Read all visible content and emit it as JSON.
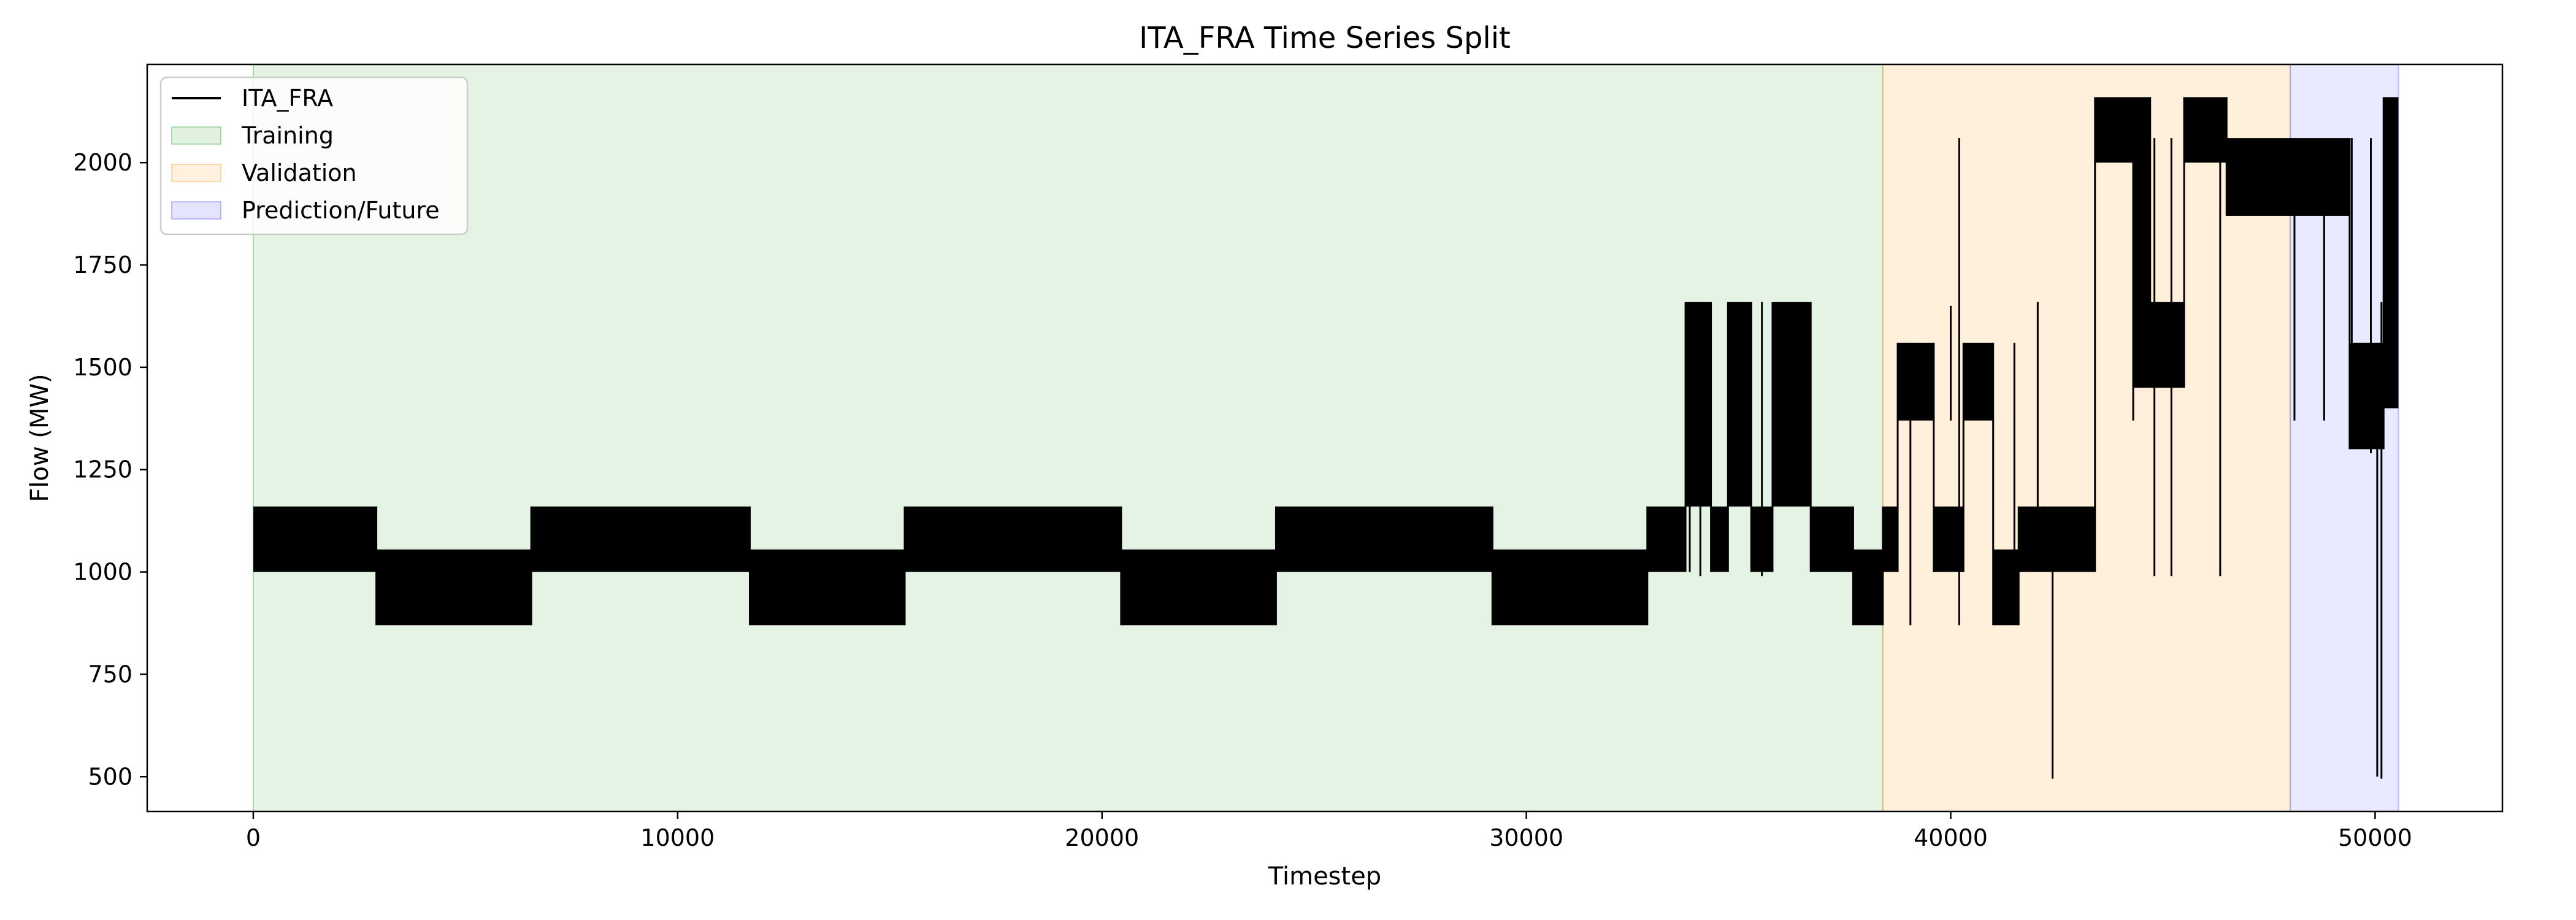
{
  "chart_data": {
    "type": "line",
    "title": "ITA_FRA Time Series Split",
    "xlabel": "Timestep",
    "ylabel": "Flow (MW)",
    "xlim": [
      -2500,
      53000
    ],
    "ylim": [
      415,
      2240
    ],
    "x_ticks": [
      0,
      10000,
      20000,
      30000,
      40000,
      50000
    ],
    "x_tick_labels": [
      "0",
      "10000",
      "20000",
      "30000",
      "40000",
      "50000"
    ],
    "y_ticks": [
      500,
      750,
      1000,
      1250,
      1500,
      1750,
      2000
    ],
    "y_tick_labels": [
      "500",
      "750",
      "1000",
      "1250",
      "1500",
      "1750",
      "2000"
    ],
    "grid": false,
    "legend_position": "top-left",
    "legend": [
      {
        "label": "ITA_FRA",
        "kind": "line",
        "color": "#000000"
      },
      {
        "label": "Training",
        "kind": "patch",
        "color": "#2ca02c"
      },
      {
        "label": "Validation",
        "kind": "patch",
        "color": "#ff9f1c"
      },
      {
        "label": "Prediction/Future",
        "kind": "patch",
        "color": "#4c4cff"
      }
    ],
    "regions": [
      {
        "name": "Training",
        "x_start": 0,
        "x_end": 38400,
        "color": "#2ca02c",
        "alpha": 0.12
      },
      {
        "name": "Validation",
        "x_start": 38400,
        "x_end": 48000,
        "color": "#ff9f1c",
        "alpha": 0.16
      },
      {
        "name": "Prediction/Future",
        "x_start": 48000,
        "x_end": 50550,
        "color": "#4c4cff",
        "alpha": 0.12
      }
    ],
    "series": [
      {
        "name": "ITA_FRA",
        "color": "#000000",
        "band_segments": [
          {
            "x_start": 0,
            "x_end": 2900,
            "low": 1000,
            "high": 1160
          },
          {
            "x_start": 2900,
            "x_end": 6550,
            "low": 870,
            "high": 1055
          },
          {
            "x_start": 6550,
            "x_end": 11700,
            "low": 1000,
            "high": 1160
          },
          {
            "x_start": 11700,
            "x_end": 15350,
            "low": 870,
            "high": 1055
          },
          {
            "x_start": 15350,
            "x_end": 20450,
            "low": 1000,
            "high": 1160
          },
          {
            "x_start": 20450,
            "x_end": 24100,
            "low": 870,
            "high": 1055
          },
          {
            "x_start": 24100,
            "x_end": 29200,
            "low": 1000,
            "high": 1160
          },
          {
            "x_start": 29200,
            "x_end": 32850,
            "low": 870,
            "high": 1055
          },
          {
            "x_start": 32850,
            "x_end": 33750,
            "low": 1000,
            "high": 1160
          },
          {
            "x_start": 33750,
            "x_end": 34350,
            "low": 1160,
            "high": 1660
          },
          {
            "x_start": 34350,
            "x_end": 34750,
            "low": 1000,
            "high": 1160
          },
          {
            "x_start": 34750,
            "x_end": 35300,
            "low": 1160,
            "high": 1660
          },
          {
            "x_start": 35300,
            "x_end": 35800,
            "low": 1000,
            "high": 1160
          },
          {
            "x_start": 35800,
            "x_end": 36700,
            "low": 1160,
            "high": 1660
          },
          {
            "x_start": 36700,
            "x_end": 37700,
            "low": 1000,
            "high": 1160
          },
          {
            "x_start": 37700,
            "x_end": 38400,
            "low": 870,
            "high": 1055
          },
          {
            "x_start": 38400,
            "x_end": 38750,
            "low": 1000,
            "high": 1160
          },
          {
            "x_start": 38750,
            "x_end": 39600,
            "low": 1370,
            "high": 1560
          },
          {
            "x_start": 39600,
            "x_end": 40300,
            "low": 1000,
            "high": 1160
          },
          {
            "x_start": 40300,
            "x_end": 41000,
            "low": 1370,
            "high": 1560
          },
          {
            "x_start": 41000,
            "x_end": 41600,
            "low": 870,
            "high": 1055
          },
          {
            "x_start": 41600,
            "x_end": 42200,
            "low": 1000,
            "high": 1160
          },
          {
            "x_start": 42200,
            "x_end": 43400,
            "low": 1000,
            "high": 1160
          },
          {
            "x_start": 43400,
            "x_end": 44300,
            "low": 2000,
            "high": 2160
          },
          {
            "x_start": 44300,
            "x_end": 44700,
            "low": 1450,
            "high": 2160
          },
          {
            "x_start": 44700,
            "x_end": 45500,
            "low": 1450,
            "high": 1660
          },
          {
            "x_start": 45500,
            "x_end": 46500,
            "low": 2000,
            "high": 2160
          },
          {
            "x_start": 46500,
            "x_end": 48000,
            "low": 1870,
            "high": 2060
          },
          {
            "x_start": 48000,
            "x_end": 49400,
            "low": 1870,
            "high": 2060
          },
          {
            "x_start": 49400,
            "x_end": 50200,
            "low": 1300,
            "high": 1560
          },
          {
            "x_start": 50200,
            "x_end": 50550,
            "low": 1400,
            "high": 2160
          }
        ],
        "spikes": [
          {
            "x": 33850,
            "low": 1000,
            "high": 1660
          },
          {
            "x": 34100,
            "low": 990,
            "high": 1660
          },
          {
            "x": 35550,
            "low": 990,
            "high": 1660
          },
          {
            "x": 39050,
            "low": 870,
            "high": 1560
          },
          {
            "x": 40000,
            "low": 1370,
            "high": 1650
          },
          {
            "x": 40200,
            "low": 870,
            "high": 2060
          },
          {
            "x": 41500,
            "low": 990,
            "high": 1560
          },
          {
            "x": 42050,
            "low": 1000,
            "high": 1660
          },
          {
            "x": 42400,
            "low": 495,
            "high": 1060
          },
          {
            "x": 44300,
            "low": 1370,
            "high": 2160
          },
          {
            "x": 44800,
            "low": 990,
            "high": 2060
          },
          {
            "x": 45200,
            "low": 990,
            "high": 2060
          },
          {
            "x": 46350,
            "low": 990,
            "high": 2060
          },
          {
            "x": 48100,
            "low": 1370,
            "high": 2060
          },
          {
            "x": 48800,
            "low": 1370,
            "high": 2060
          },
          {
            "x": 49450,
            "low": 1370,
            "high": 2060
          },
          {
            "x": 49900,
            "low": 1290,
            "high": 2060
          },
          {
            "x": 50050,
            "low": 500,
            "high": 1560
          },
          {
            "x": 50150,
            "low": 495,
            "high": 1660
          }
        ]
      }
    ]
  }
}
